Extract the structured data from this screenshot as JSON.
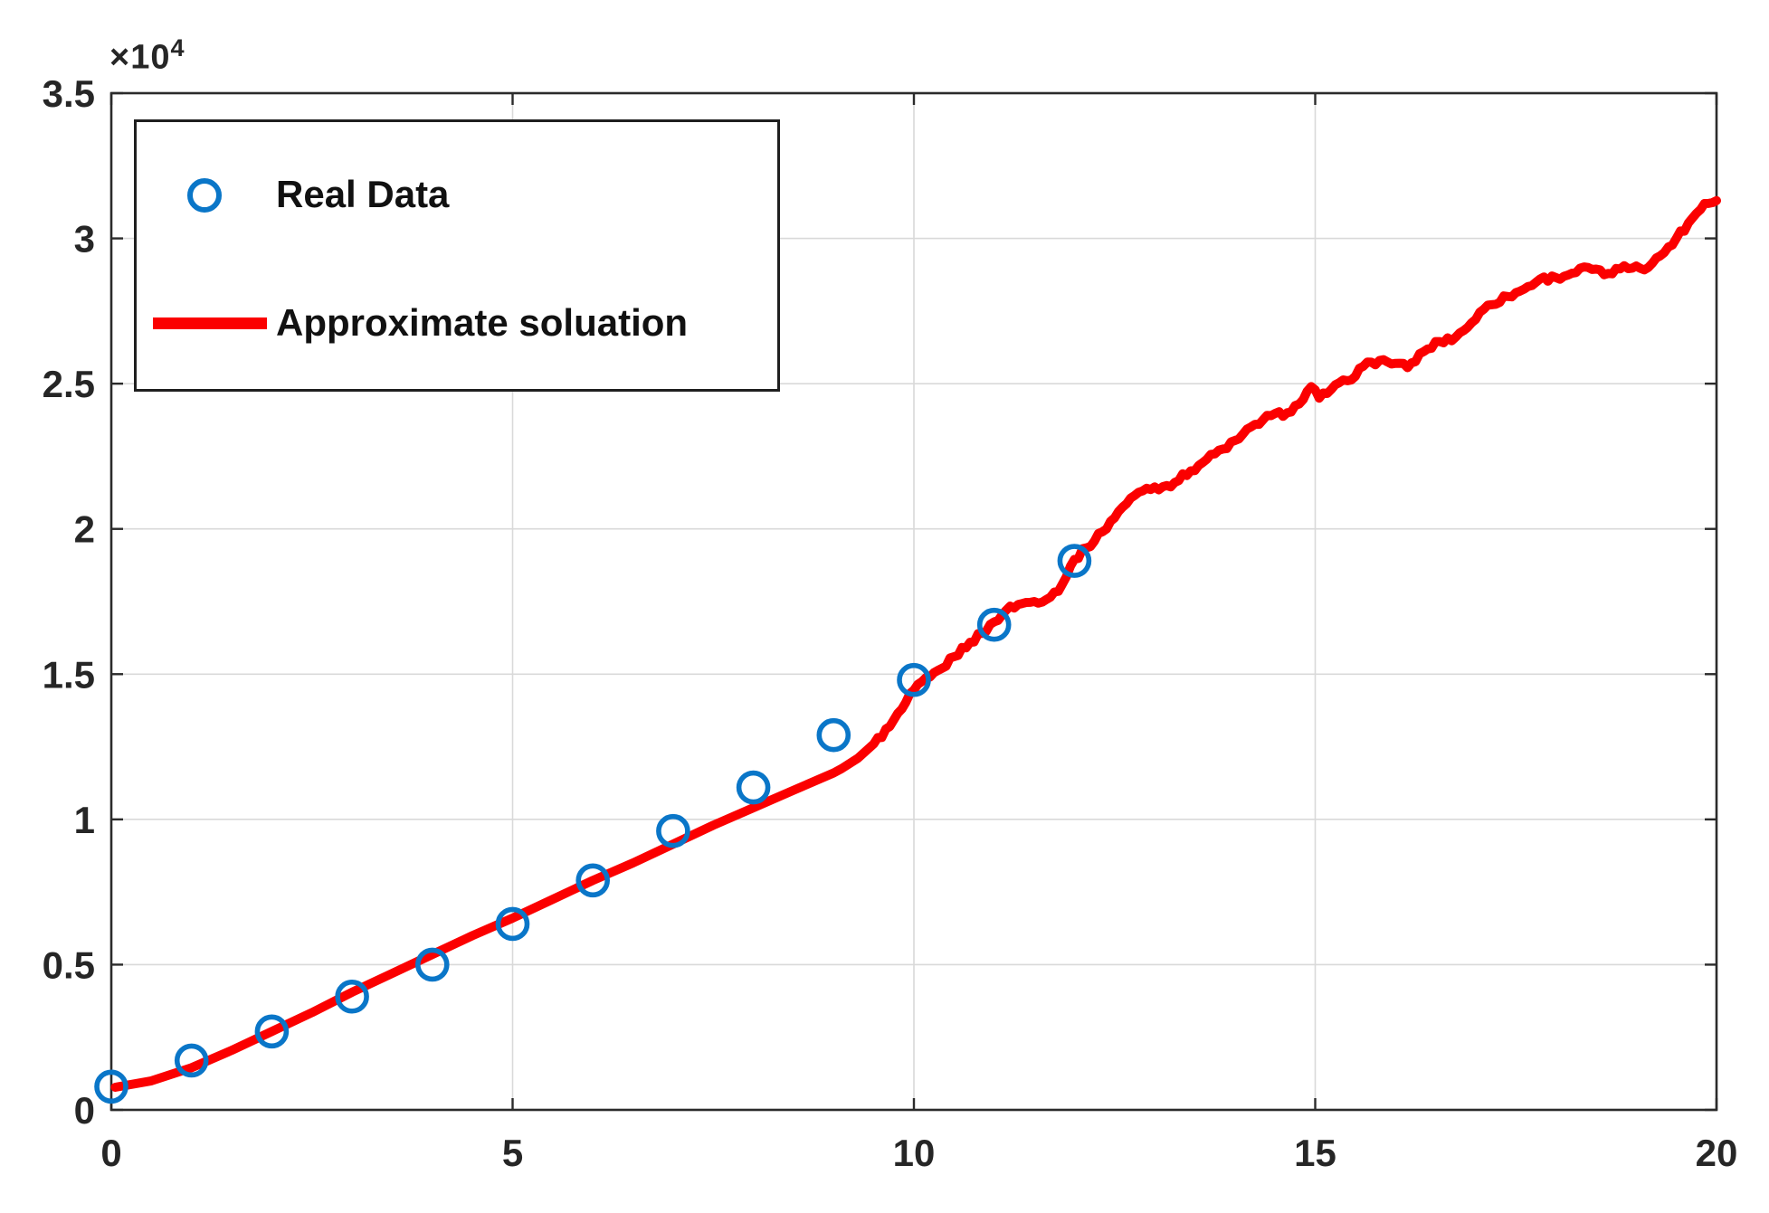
{
  "chart_data": {
    "type": "line+scatter",
    "title": "",
    "xlabel": "",
    "ylabel": "",
    "xlim": [
      0,
      20
    ],
    "ylim": [
      0,
      35000
    ],
    "grid": true,
    "y_exponent_base": "×10",
    "y_exponent_power": "4",
    "x_tick_values": [
      0,
      5,
      10,
      15,
      20
    ],
    "x_tick_labels": [
      "0",
      "5",
      "10",
      "15",
      "20"
    ],
    "y_tick_values": [
      0,
      5000,
      10000,
      15000,
      20000,
      25000,
      30000,
      35000
    ],
    "y_tick_labels": [
      "0",
      "0.5",
      "1",
      "1.5",
      "2",
      "2.5",
      "3",
      "3.5"
    ],
    "legend_position": "northwest",
    "colors": {
      "real_data": "#0a76c8",
      "approx_solution": "#fb0000",
      "axis": "#2b2b2b",
      "grid": "#d9d9d9",
      "background": "#ffffff"
    },
    "line_noise": {
      "amplitude": 105,
      "start_x": 9.35,
      "step": 0.05
    },
    "series": [
      {
        "name": "real-data",
        "type": "scatter",
        "label": "Real Data",
        "color": "#0a76c8",
        "x": [
          0,
          1,
          2,
          3,
          4,
          5,
          6,
          7,
          8,
          9,
          10,
          11,
          12
        ],
        "y": [
          800,
          1700,
          2700,
          3900,
          5000,
          6400,
          7900,
          9600,
          11100,
          12900,
          14800,
          16700,
          18900
        ]
      },
      {
        "name": "approximate-solution",
        "type": "line",
        "label": "Approximate soluation",
        "color": "#fb0000",
        "points": [
          [
            0.05,
            780
          ],
          [
            0.5,
            1000
          ],
          [
            1.0,
            1450
          ],
          [
            1.5,
            2050
          ],
          [
            2.0,
            2700
          ],
          [
            2.5,
            3350
          ],
          [
            3.0,
            4050
          ],
          [
            3.5,
            4700
          ],
          [
            4.0,
            5350
          ],
          [
            4.5,
            6000
          ],
          [
            5.0,
            6600
          ],
          [
            5.5,
            7250
          ],
          [
            6.0,
            7900
          ],
          [
            6.5,
            8500
          ],
          [
            7.0,
            9150
          ],
          [
            7.5,
            9800
          ],
          [
            8.0,
            10400
          ],
          [
            8.5,
            11000
          ],
          [
            9.0,
            11600
          ],
          [
            9.1,
            11750
          ],
          [
            9.3,
            12100
          ],
          [
            9.5,
            12600
          ],
          [
            9.7,
            13200
          ],
          [
            9.85,
            13800
          ],
          [
            10.0,
            14450
          ],
          [
            10.2,
            14900
          ],
          [
            10.35,
            15200
          ],
          [
            10.5,
            15600
          ],
          [
            10.7,
            16100
          ],
          [
            10.85,
            16400
          ],
          [
            11.0,
            16800
          ],
          [
            11.15,
            17200
          ],
          [
            11.3,
            17400
          ],
          [
            11.5,
            17500
          ],
          [
            11.7,
            17650
          ],
          [
            11.85,
            18100
          ],
          [
            12.0,
            18950
          ],
          [
            12.15,
            19350
          ],
          [
            12.35,
            19900
          ],
          [
            12.55,
            20600
          ],
          [
            12.75,
            21150
          ],
          [
            12.9,
            21400
          ],
          [
            13.1,
            21450
          ],
          [
            13.25,
            21600
          ],
          [
            13.45,
            22000
          ],
          [
            13.65,
            22400
          ],
          [
            13.85,
            22750
          ],
          [
            14.05,
            23100
          ],
          [
            14.25,
            23600
          ],
          [
            14.45,
            23900
          ],
          [
            14.65,
            24000
          ],
          [
            14.8,
            24300
          ],
          [
            14.95,
            24900
          ],
          [
            15.05,
            24500
          ],
          [
            15.2,
            24800
          ],
          [
            15.4,
            25100
          ],
          [
            15.6,
            25600
          ],
          [
            15.8,
            25800
          ],
          [
            16.0,
            25700
          ],
          [
            16.15,
            25550
          ],
          [
            16.35,
            26100
          ],
          [
            16.55,
            26450
          ],
          [
            16.75,
            26600
          ],
          [
            16.95,
            27100
          ],
          [
            17.15,
            27700
          ],
          [
            17.4,
            28000
          ],
          [
            17.6,
            28250
          ],
          [
            17.8,
            28600
          ],
          [
            18.0,
            28650
          ],
          [
            18.2,
            28800
          ],
          [
            18.4,
            29000
          ],
          [
            18.6,
            28750
          ],
          [
            18.8,
            28950
          ],
          [
            19.0,
            29050
          ],
          [
            19.15,
            29000
          ],
          [
            19.3,
            29400
          ],
          [
            19.5,
            30000
          ],
          [
            19.7,
            30700
          ],
          [
            19.85,
            31200
          ],
          [
            20.0,
            31300
          ]
        ]
      }
    ]
  }
}
